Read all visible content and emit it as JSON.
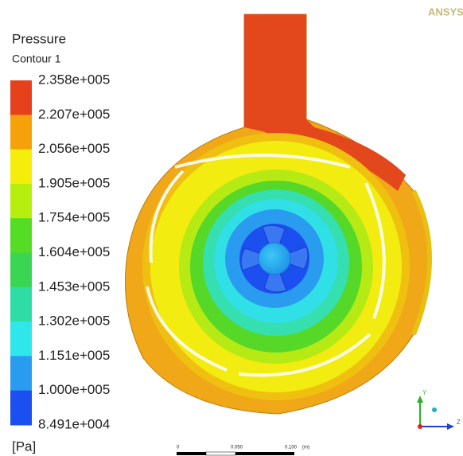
{
  "legend": {
    "title": "Pressure",
    "subtitle": "Contour 1",
    "levels": [
      "2.358e+005",
      "2.207e+005",
      "2.056e+005",
      "1.905e+005",
      "1.754e+005",
      "1.604e+005",
      "1.453e+005",
      "1.302e+005",
      "1.151e+005",
      "1.000e+005",
      "8.491e+004"
    ],
    "colors": [
      "#e5411d",
      "#f5a10a",
      "#f4ee0a",
      "#b6ee0e",
      "#55dc24",
      "#3ad552",
      "#2fdca6",
      "#2fe6ea",
      "#2a9cf0",
      "#1c4ff0"
    ],
    "unit": "[Pa]"
  },
  "logo": "ANSYS",
  "scale_bar": {
    "labels": [
      "0",
      "0.050",
      "0.100"
    ],
    "unit": "(m)"
  },
  "triad": {
    "y": "Y",
    "z": "Z"
  }
}
